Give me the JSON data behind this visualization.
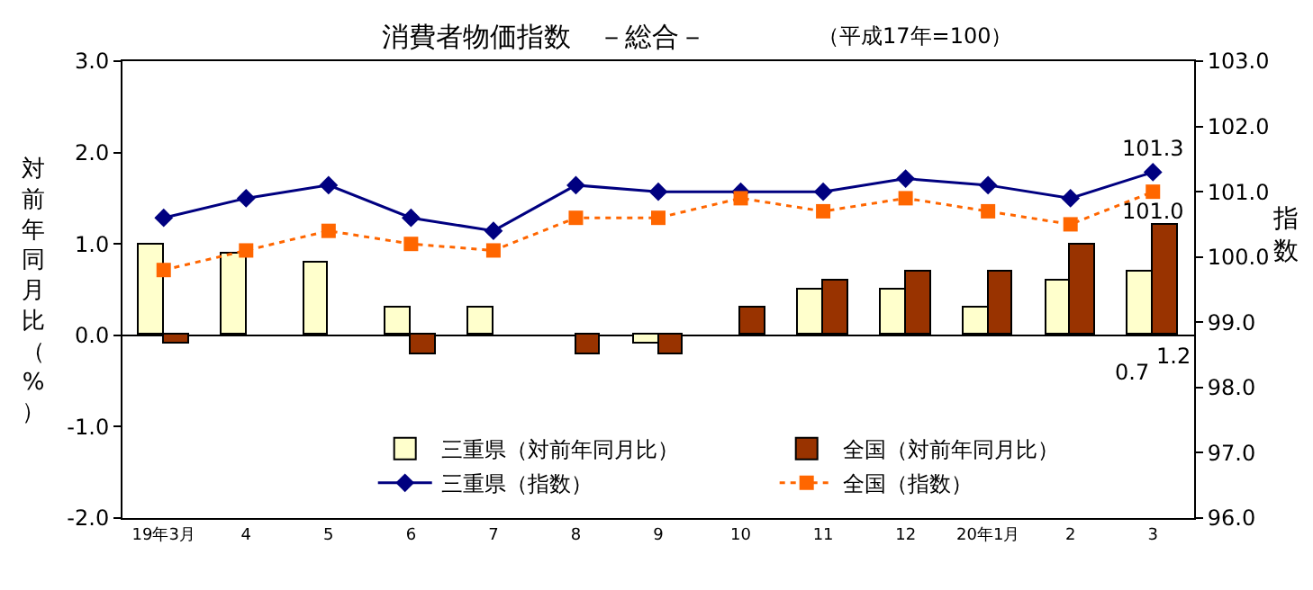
{
  "chart_data": {
    "type": "bar",
    "title": "消費者物価指数　－総合－",
    "subtitle": "（平成17年=100）",
    "ylabel": "対前年同月比（%）",
    "y2label": "指数",
    "categories": [
      "19年3月",
      "4",
      "5",
      "6",
      "7",
      "8",
      "9",
      "10",
      "11",
      "12",
      "20年1月",
      "2",
      "3"
    ],
    "series": [
      {
        "name": "三重県（対前年同月比）",
        "color": "#ffffcc",
        "values": [
          1.0,
          0.9,
          0.8,
          0.3,
          0.3,
          0.0,
          -0.1,
          0.0,
          0.5,
          0.5,
          0.3,
          0.6,
          0.7
        ],
        "value_labels": [
          null,
          null,
          null,
          null,
          null,
          null,
          null,
          null,
          null,
          null,
          null,
          null,
          "0.7"
        ]
      },
      {
        "name": "全国（対前年同月比）",
        "color": "#993300",
        "values": [
          -0.1,
          0.0,
          0.0,
          -0.2,
          0.0,
          -0.2,
          -0.2,
          0.3,
          0.6,
          0.7,
          0.7,
          1.0,
          1.2
        ],
        "value_labels": [
          null,
          null,
          null,
          null,
          null,
          null,
          null,
          null,
          null,
          null,
          null,
          null,
          "1.2"
        ]
      },
      {
        "name": "三重県（指数）",
        "type": "line",
        "axis": "y2",
        "color": "#000080",
        "marker": "diamond",
        "line_style": "solid",
        "values": [
          100.6,
          100.9,
          101.1,
          100.6,
          100.4,
          101.1,
          101.0,
          101.0,
          101.0,
          101.2,
          101.1,
          100.9,
          101.3
        ],
        "value_labels": [
          null,
          null,
          null,
          null,
          null,
          null,
          null,
          null,
          null,
          null,
          null,
          null,
          "101.3"
        ]
      },
      {
        "name": "全国（指数）",
        "type": "line",
        "axis": "y2",
        "color": "#ff6600",
        "marker": "square",
        "line_style": "dotted",
        "values": [
          99.8,
          100.1,
          100.4,
          100.2,
          100.1,
          100.6,
          100.6,
          100.9,
          100.7,
          100.9,
          100.7,
          100.5,
          101.0
        ],
        "value_labels": [
          null,
          null,
          null,
          null,
          null,
          null,
          null,
          null,
          null,
          null,
          null,
          null,
          "101.0"
        ]
      }
    ],
    "ylim": [
      -2,
      3
    ],
    "yticks": [
      {
        "value": -2,
        "label": "-2.0"
      },
      {
        "value": -1,
        "label": "-1.0"
      },
      {
        "value": 0,
        "label": "0.0"
      },
      {
        "value": 1,
        "label": "1.0"
      },
      {
        "value": 2,
        "label": "2.0"
      },
      {
        "value": 3,
        "label": "3.0"
      }
    ],
    "y2lim": [
      96,
      103
    ],
    "y2ticks": [
      {
        "value": 96,
        "label": "96.0"
      },
      {
        "value": 97,
        "label": "97.0"
      },
      {
        "value": 98,
        "label": "98.0"
      },
      {
        "value": 99,
        "label": "99.0"
      },
      {
        "value": 100,
        "label": "100.0"
      },
      {
        "value": 101,
        "label": "101.0"
      },
      {
        "value": 102,
        "label": "102.0"
      },
      {
        "value": 103,
        "label": "103.0"
      }
    ],
    "legend": "bottom"
  }
}
